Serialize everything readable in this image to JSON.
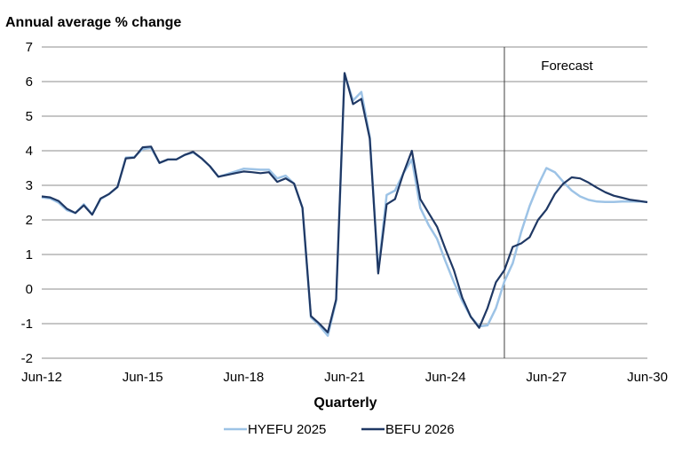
{
  "chart_data": {
    "type": "line",
    "title": "",
    "ylabel": "Annual average % change",
    "xlabel": "Quarterly",
    "ylim": [
      -2,
      7
    ],
    "yticks": [
      -2,
      -1,
      0,
      1,
      2,
      3,
      4,
      5,
      6,
      7
    ],
    "x_start": "Jun-12",
    "x_end": "Jun-30",
    "xticks": [
      "Jun-12",
      "Jun-15",
      "Jun-18",
      "Jun-21",
      "Jun-24",
      "Jun-27",
      "Jun-30"
    ],
    "grid": true,
    "legend": "bottom",
    "annotation": {
      "text": "Forecast",
      "at": "Mar-26"
    },
    "series": [
      {
        "name": "HYEFU 2025",
        "color": "#9dc3e6",
        "values": [
          2.65,
          2.62,
          2.5,
          2.28,
          2.2,
          2.45,
          2.16,
          2.6,
          2.75,
          2.95,
          3.8,
          3.82,
          4.05,
          4.08,
          3.65,
          3.75,
          3.75,
          3.88,
          3.95,
          3.78,
          3.55,
          3.25,
          3.32,
          3.4,
          3.48,
          3.47,
          3.45,
          3.45,
          3.2,
          3.28,
          3.05,
          2.35,
          -0.82,
          -1.05,
          -1.35,
          -0.35,
          6.22,
          5.45,
          5.7,
          4.4,
          0.5,
          2.72,
          2.85,
          3.35,
          3.75,
          2.35,
          1.85,
          1.45,
          0.8,
          0.2,
          -0.35,
          -0.8,
          -1.08,
          -1.05,
          -0.55,
          0.22,
          0.75,
          1.65,
          2.4,
          3.0,
          3.5,
          3.38,
          3.1,
          2.85,
          2.68,
          2.58,
          2.53,
          2.52,
          2.52,
          2.53,
          2.53,
          2.53,
          2.52
        ]
      },
      {
        "name": "BEFU 2026",
        "color": "#1f3864",
        "values": [
          2.68,
          2.65,
          2.55,
          2.32,
          2.2,
          2.42,
          2.15,
          2.62,
          2.75,
          2.95,
          3.78,
          3.8,
          4.1,
          4.12,
          3.65,
          3.75,
          3.75,
          3.88,
          3.97,
          3.78,
          3.55,
          3.25,
          3.3,
          3.35,
          3.4,
          3.38,
          3.35,
          3.38,
          3.1,
          3.2,
          3.05,
          2.35,
          -0.78,
          -1.0,
          -1.25,
          -0.3,
          6.25,
          5.35,
          5.5,
          4.35,
          0.45,
          2.45,
          2.6,
          3.35,
          4.0,
          2.6,
          2.2,
          1.8,
          1.15,
          0.55,
          -0.25,
          -0.8,
          -1.12,
          -0.55,
          0.2,
          0.55,
          1.22,
          1.32,
          1.5,
          2.0,
          2.3,
          2.75,
          3.05,
          3.23,
          3.2,
          3.08,
          2.93,
          2.8,
          2.7,
          2.64,
          2.58,
          2.55,
          2.51
        ]
      }
    ]
  }
}
